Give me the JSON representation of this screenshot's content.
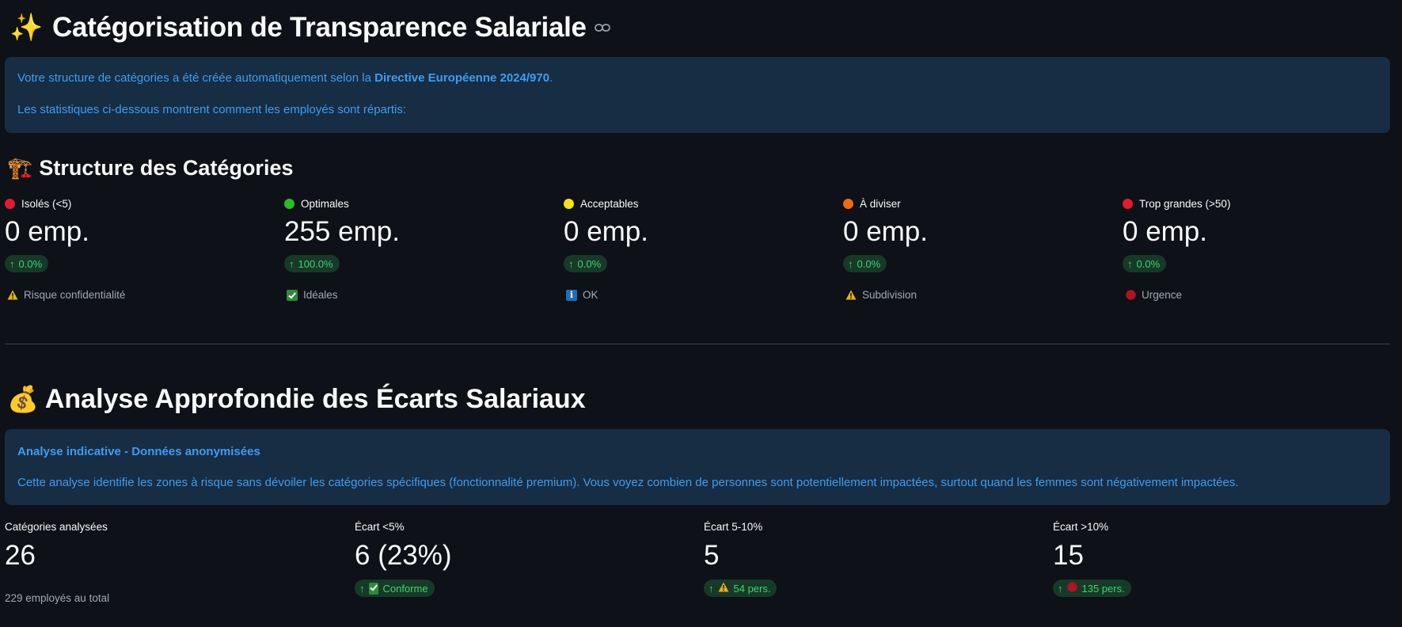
{
  "page": {
    "title": "Catégorisation de Transparence Salariale",
    "title_emoji": "✨"
  },
  "intro_box": {
    "line1_prefix": "Votre structure de catégories a été créée automatiquement selon la ",
    "line1_bold": "Directive Européenne 2024/970",
    "line1_suffix": ".",
    "line2": "Les statistiques ci-dessous montrent comment les employés sont répartis:"
  },
  "structure": {
    "emoji": "🏗️",
    "title": "Structure des Catégories",
    "metrics": [
      {
        "label": "Isolés (<5)",
        "dot_color": "#e8192c",
        "value": "0 emp.",
        "delta": "0.0%",
        "caption": "Risque confidentialité",
        "caption_icon": "warning-icon"
      },
      {
        "label": "Optimales",
        "dot_color": "#22c31d",
        "value": "255 emp.",
        "delta": "100.0%",
        "caption": "Idéales",
        "caption_icon": "check-icon"
      },
      {
        "label": "Acceptables",
        "dot_color": "#f5e20f",
        "value": "0 emp.",
        "delta": "0.0%",
        "caption": "OK",
        "caption_icon": "info-icon"
      },
      {
        "label": "À diviser",
        "dot_color": "#f06a11",
        "value": "0 emp.",
        "delta": "0.0%",
        "caption": "Subdivision",
        "caption_icon": "warning-icon"
      },
      {
        "label": "Trop grandes (>50)",
        "dot_color": "#e8192c",
        "value": "0 emp.",
        "delta": "0.0%",
        "caption": "Urgence",
        "caption_icon": "red-circle-icon"
      }
    ]
  },
  "analysis": {
    "emoji": "💰",
    "title": "Analyse Approfondie des Écarts Salariaux",
    "box_title": "Analyse indicative - Données anonymisées",
    "box_text": "Cette analyse identifie les zones à risque sans dévoiler les catégories spécifiques (fonctionnalité premium). Vous voyez combien de personnes sont potentiellement impactées, surtout quand les femmes sont négativement impactées.",
    "metrics": [
      {
        "label": "Catégories analysées",
        "value": "26",
        "delta": "",
        "delta_icon": "",
        "caption": "229 employés au total"
      },
      {
        "label": "Écart <5%",
        "value": "6 (23%)",
        "delta": "Conforme",
        "delta_icon": "check-icon",
        "caption": ""
      },
      {
        "label": "Écart 5-10%",
        "value": "5",
        "delta": "54 pers.",
        "delta_icon": "warning-icon",
        "caption": ""
      },
      {
        "label": "Écart >10%",
        "value": "15",
        "delta": "135 pers.",
        "delta_icon": "red-circle-icon",
        "caption": ""
      }
    ]
  },
  "colors": {
    "background": "#0e1117",
    "info_bg": "#172d43",
    "info_text": "#3d9df3",
    "delta_bg": "#173928",
    "delta_text": "#3dd56d"
  }
}
